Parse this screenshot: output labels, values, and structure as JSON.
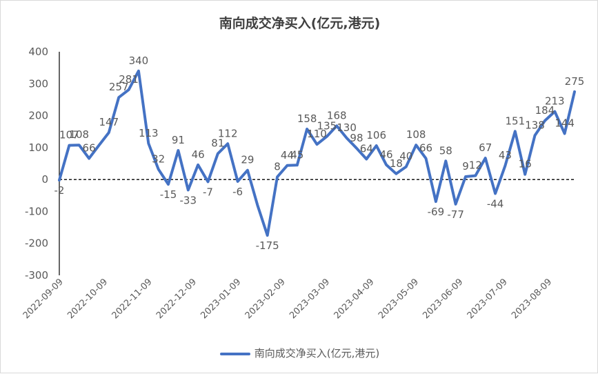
{
  "title": "南向成交净买入(亿元,港元)",
  "chart_data": {
    "type": "line",
    "title": "南向成交净买入(亿元,港元)",
    "series_name": "南向成交净买入(亿元,港元)",
    "color": "#4472c4",
    "ylim": [
      -300,
      400
    ],
    "yticks": [
      400,
      300,
      200,
      100,
      0,
      -100,
      -200,
      -300
    ],
    "zero_line": "dashed",
    "legend_position": "bottom",
    "x_tick_labels": [
      "2022-09-09",
      "2022-10-09",
      "2022-11-09",
      "2022-12-09",
      "2023-01-09",
      "2023-02-09",
      "2023-03-09",
      "2023-04-09",
      "2023-05-09",
      "2023-06-09",
      "2023-07-09",
      "2023-08-09"
    ],
    "values": [
      -2,
      107,
      108,
      66,
      107,
      147,
      257,
      281,
      340,
      113,
      32,
      -15,
      91,
      -33,
      46,
      -7,
      81,
      112,
      -6,
      29,
      -80,
      -175,
      8,
      44,
      45,
      158,
      110,
      135,
      168,
      130,
      98,
      64,
      106,
      46,
      18,
      40,
      108,
      66,
      -69,
      58,
      -77,
      9,
      12,
      67,
      -44,
      43,
      151,
      16,
      138,
      184,
      213,
      144,
      275
    ],
    "data_labels": [
      "-2",
      "107",
      "108",
      "66",
      "",
      "147",
      "257",
      "281",
      "340",
      "113",
      "32",
      "-15",
      "91",
      "-33",
      "46",
      "-7",
      "81",
      "112",
      "-6",
      "29",
      "",
      "-175",
      "8",
      "44",
      "45",
      "158",
      "110",
      "135",
      "168",
      "130",
      "98",
      "64",
      "106",
      "46",
      "18",
      "40",
      "108",
      "66",
      "-69",
      "58",
      "-77",
      "9",
      "12",
      "67",
      "-44",
      "43",
      "151",
      "16",
      "138",
      "184",
      "213",
      "144",
      "275"
    ]
  }
}
